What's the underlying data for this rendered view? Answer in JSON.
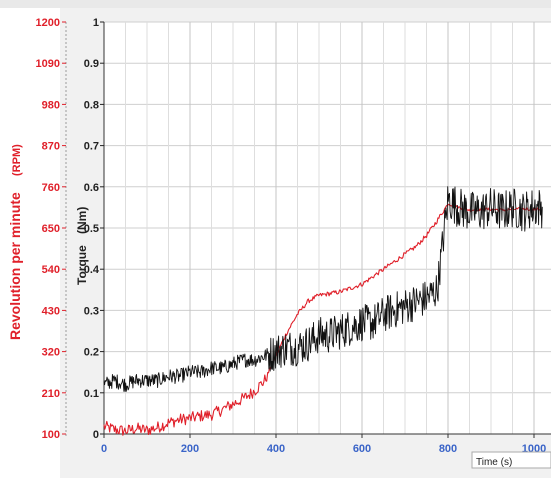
{
  "chart_data": {
    "type": "line",
    "title": "",
    "xlabel": "Time (s)",
    "ylabel_left_outer": "Revolution per minute",
    "ylabel_left_outer_unit": "(RPM)",
    "ylabel_left_inner": "Torque",
    "ylabel_left_inner_unit": "(Nm)",
    "xlim": [
      0,
      1000
    ],
    "x_ticks": [
      0,
      200,
      400,
      600,
      800,
      1000
    ],
    "x_tick_labels": [
      "0",
      "200",
      "400",
      "600",
      "800",
      "1000"
    ],
    "rpm_ylim": [
      100,
      1200
    ],
    "rpm_ticks": [
      "1200",
      "1090",
      "980",
      "870",
      "760",
      "650",
      "540",
      "430",
      "320",
      "210",
      "100"
    ],
    "torque_ylim": [
      0,
      1
    ],
    "torque_ticks": [
      "1",
      "0.9",
      "0.8",
      "0.7",
      "0.6",
      "0.5",
      "0.4",
      "0.3",
      "0.2",
      "0.1",
      "0"
    ],
    "grid": true,
    "series": [
      {
        "axis": "rpm",
        "color": "#e0202a",
        "x": [
          0,
          25,
          50,
          75,
          100,
          125,
          150,
          175,
          200,
          225,
          250,
          275,
          300,
          325,
          350,
          375,
          400,
          425,
          450,
          475,
          500,
          525,
          550,
          575,
          600,
          625,
          650,
          675,
          700,
          725,
          750,
          775,
          800,
          825,
          850,
          875,
          900,
          925,
          950,
          975,
          1000,
          1020
        ],
        "values": [
          120,
          112,
          108,
          115,
          110,
          118,
          130,
          138,
          142,
          148,
          152,
          165,
          180,
          195,
          215,
          245,
          310,
          370,
          420,
          455,
          470,
          475,
          480,
          490,
          500,
          520,
          540,
          560,
          580,
          600,
          630,
          670,
          715,
          705,
          698,
          700,
          700,
          698,
          700,
          701,
          700,
          700
        ]
      },
      {
        "axis": "torque",
        "color": "#111111",
        "x": [
          0,
          25,
          50,
          75,
          100,
          125,
          150,
          175,
          200,
          225,
          250,
          275,
          300,
          325,
          350,
          375,
          400,
          425,
          450,
          475,
          500,
          525,
          550,
          575,
          600,
          625,
          650,
          675,
          700,
          725,
          750,
          775,
          800,
          825,
          850,
          875,
          900,
          925,
          950,
          975,
          1000,
          1020
        ],
        "values": [
          0.12,
          0.13,
          0.12,
          0.13,
          0.13,
          0.13,
          0.14,
          0.14,
          0.15,
          0.15,
          0.16,
          0.16,
          0.17,
          0.18,
          0.18,
          0.19,
          0.2,
          0.21,
          0.21,
          0.22,
          0.24,
          0.24,
          0.25,
          0.26,
          0.27,
          0.27,
          0.29,
          0.3,
          0.31,
          0.32,
          0.33,
          0.35,
          0.57,
          0.55,
          0.54,
          0.54,
          0.55,
          0.54,
          0.55,
          0.54,
          0.55,
          0.55
        ]
      }
    ]
  }
}
